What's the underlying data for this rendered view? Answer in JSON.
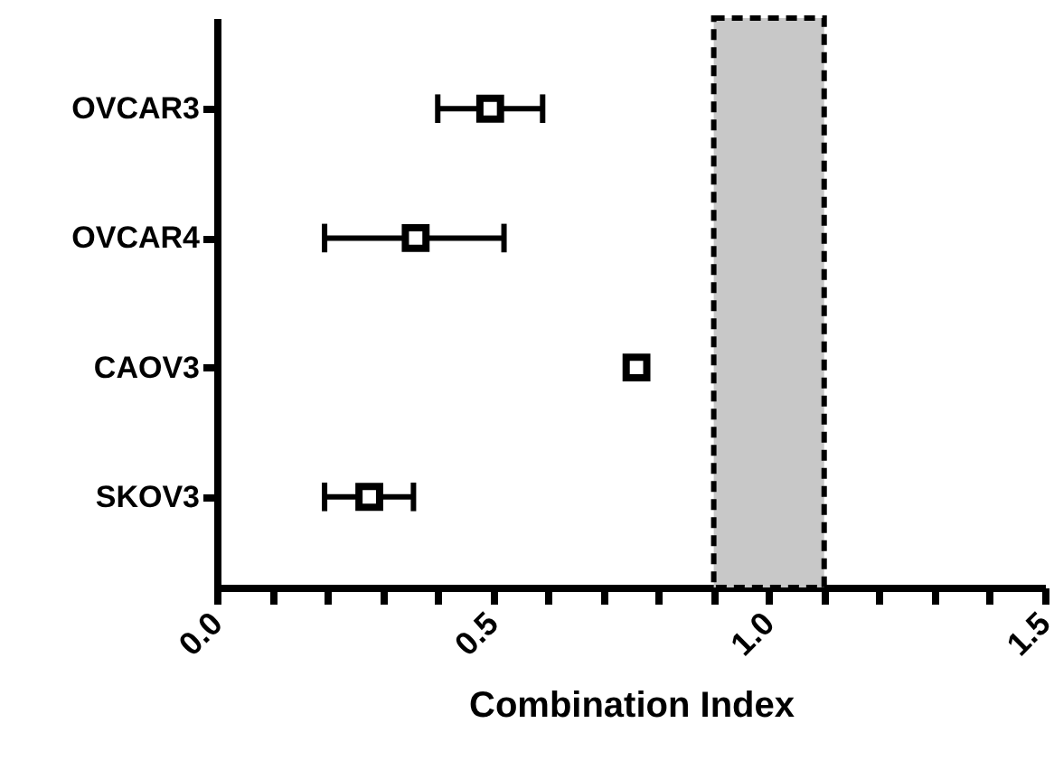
{
  "chart_data": {
    "type": "scatter",
    "orientation": "horizontal",
    "xlabel": "Combination Index",
    "categories": [
      "OVCAR3",
      "OVCAR4",
      "CAOV3",
      "SKOV3"
    ],
    "values": [
      0.495,
      0.36,
      0.76,
      0.276
    ],
    "errors": [
      [
        0.4,
        0.59
      ],
      [
        0.195,
        0.52
      ],
      null,
      [
        0.195,
        0.356
      ]
    ],
    "color": "#000000",
    "marker": "square",
    "xlim": [
      0,
      1.5
    ],
    "xticks": [
      {
        "value": 0,
        "label": "0.0"
      },
      {
        "value": 0.1,
        "label": null
      },
      {
        "value": 0.2,
        "label": null
      },
      {
        "value": 0.3,
        "label": null
      },
      {
        "value": 0.4,
        "label": null
      },
      {
        "value": 0.5,
        "label": "0.5"
      },
      {
        "value": 0.6,
        "label": null
      },
      {
        "value": 0.7,
        "label": null
      },
      {
        "value": 0.8,
        "label": null
      },
      {
        "value": 0.9,
        "label": null
      },
      {
        "value": 1.0,
        "label": "1.0"
      },
      {
        "value": 1.1,
        "label": null
      },
      {
        "value": 1.2,
        "label": null
      },
      {
        "value": 1.3,
        "label": null
      },
      {
        "value": 1.4,
        "label": null
      },
      {
        "value": 1.5,
        "label": "1.5"
      }
    ],
    "bands": [
      {
        "axis": "x",
        "from": 0.9,
        "to": 1.1,
        "color": "#c8c8c8"
      }
    ],
    "grid": false
  }
}
